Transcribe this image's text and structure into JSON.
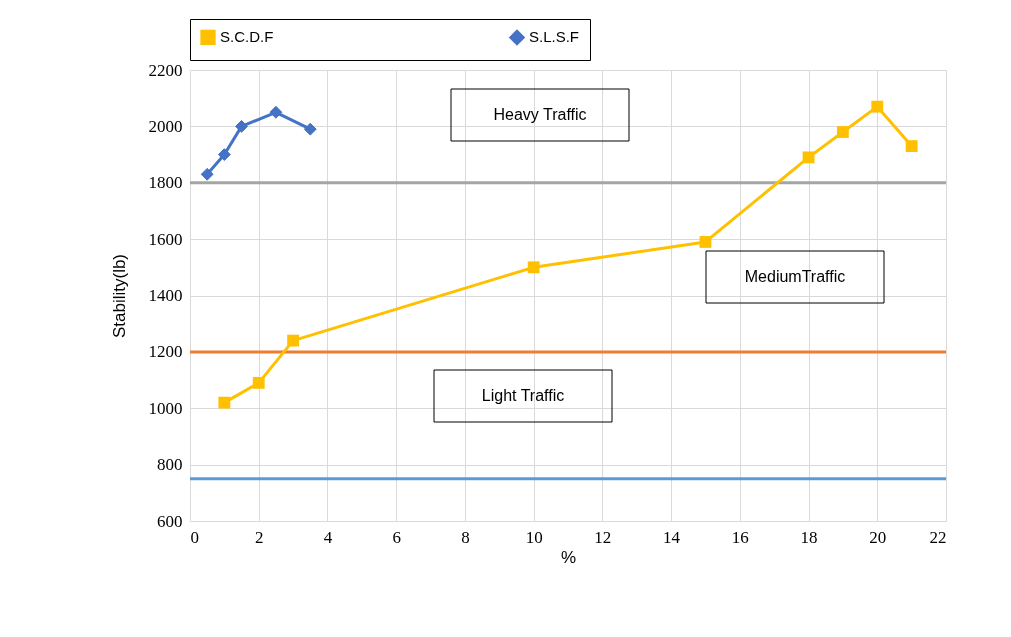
{
  "chart_data": {
    "type": "line",
    "xlabel": "%",
    "ylabel": "Stability(lb)",
    "xlim": [
      0,
      22
    ],
    "xticks": [
      0,
      2,
      4,
      6,
      8,
      10,
      12,
      14,
      16,
      18,
      20,
      22
    ],
    "ylim": [
      600,
      2200
    ],
    "yticks": [
      600,
      800,
      {
        "value": 1000,
        "label": "1000"
      },
      {
        "value": 1200,
        "label": "1200"
      },
      {
        "value": 1400,
        "label": "1400"
      },
      {
        "value": 1600,
        "label": "1600"
      },
      {
        "value": 1800,
        "label": "1800"
      },
      {
        "value": 2000,
        "label": "2000"
      },
      {
        "value": 2200,
        "label": "2200"
      }
    ],
    "grid": true,
    "legend": "top",
    "line_style": "solid",
    "series": [
      {
        "name": "S.C.D.F",
        "color": "#ffc000",
        "marker": "square",
        "x": [
          1,
          2,
          3,
          10,
          15,
          18,
          19,
          20,
          21
        ],
        "values": [
          1020,
          1090,
          1240,
          1500,
          1590,
          1890,
          1980,
          2070,
          1930
        ]
      },
      {
        "name": "S.L.S.F",
        "color": "#4472c4",
        "marker": "diamond",
        "x": [
          0.5,
          1,
          1.5,
          2.5,
          3.5
        ],
        "values": [
          1830,
          1900,
          2000,
          2050,
          1990
        ]
      }
    ],
    "ref_lines": [
      {
        "axis": "y",
        "value": 1800,
        "color": "#a5a5a5"
      },
      {
        "axis": "y",
        "value": 1200,
        "color": "#ed7d31"
      },
      {
        "axis": "y",
        "value": 750,
        "color": "#5b9bd5"
      }
    ],
    "annotations": [
      "Heavy Traffic",
      "MediumTraffic",
      "Light Traffic"
    ]
  }
}
